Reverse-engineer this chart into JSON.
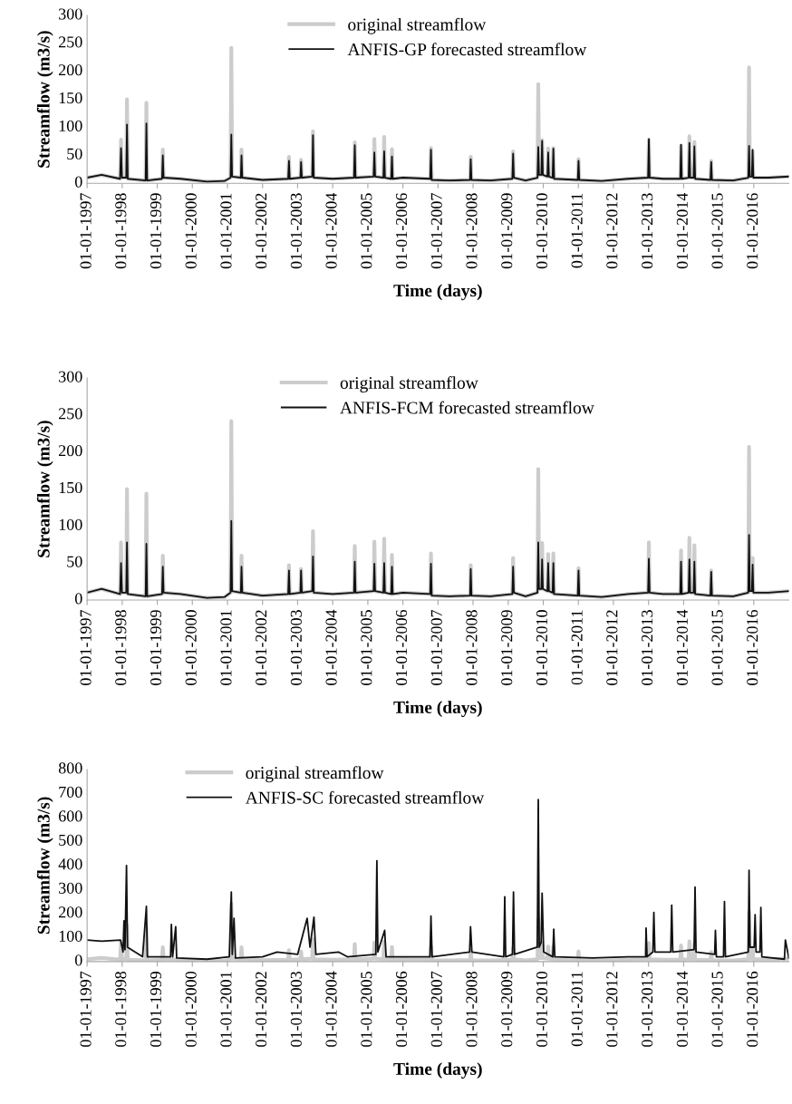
{
  "chart_data": [
    {
      "type": "line",
      "xlabel": "Time (days)",
      "ylabel": "Streamflow (m3/s)",
      "legend": "top",
      "ylim": [
        0,
        300
      ],
      "yticks": [
        0,
        50,
        100,
        150,
        200,
        250,
        300
      ],
      "xlim": [
        "1997-01-01",
        "2016-12-31"
      ],
      "xticks": [
        {
          "value": "1997-01-01",
          "label": "01-01-1997"
        },
        {
          "value": "1998-01-01",
          "label": "01-01-1998"
        },
        {
          "value": "1999-01-01",
          "label": "01-01-1999"
        },
        {
          "value": "2000-01-01",
          "label": "01-01-2000"
        },
        {
          "value": "2001-01-01",
          "label": "01-01-2001"
        },
        {
          "value": "2002-01-01",
          "label": "01-01-2002"
        },
        {
          "value": "2003-01-01",
          "label": "01-01-2003"
        },
        {
          "value": "2004-01-01",
          "label": "01-01-2004"
        },
        {
          "value": "2005-01-01",
          "label": "01-01-2005"
        },
        {
          "value": "2006-01-01",
          "label": "01-01-2006"
        },
        {
          "value": "2007-01-01",
          "label": "01-01-2007"
        },
        {
          "value": "2008-01-01",
          "label": "01-01-2008"
        },
        {
          "value": "2009-01-01",
          "label": "01-01-2009"
        },
        {
          "value": "2010-01-01",
          "label": "01-01-2010"
        },
        {
          "value": "2011-01-01",
          "label": "01-01-2011"
        },
        {
          "value": "2012-01-01",
          "label": "01-01-2012"
        },
        {
          "value": "2013-01-01",
          "label": "01-01-2013"
        },
        {
          "value": "2014-01-01",
          "label": "01-01-2014"
        },
        {
          "value": "2015-01-01",
          "label": "01-01-2015"
        },
        {
          "value": "2016-01-01",
          "label": "01-01-2016"
        }
      ],
      "x": [
        "1997-01-01",
        "1997-06-01",
        "1997-12-10",
        "1997-12-20",
        "1997-12-30",
        "1998-02-12",
        "1998-02-20",
        "1998-02-28",
        "1998-09-02",
        "1998-09-10",
        "1998-09-18",
        "1999-02-20",
        "1999-02-28",
        "1999-03-08",
        "1999-09-01",
        "2000-06-01",
        "2000-12-01",
        "2001-02-02",
        "2001-02-10",
        "2001-02-18",
        "2001-05-20",
        "2001-05-27",
        "2001-06-04",
        "2002-01-01",
        "2002-09-25",
        "2002-10-03",
        "2002-10-11",
        "2003-01-30",
        "2003-02-06",
        "2003-02-14",
        "2003-06-02",
        "2003-06-10",
        "2003-06-18",
        "2004-01-01",
        "2004-08-10",
        "2004-08-18",
        "2004-08-26",
        "2005-03-02",
        "2005-03-10",
        "2005-03-18",
        "2005-06-12",
        "2005-06-20",
        "2005-06-28",
        "2005-09-01",
        "2005-09-09",
        "2005-09-17",
        "2006-01-01",
        "2006-10-12",
        "2006-10-20",
        "2006-10-28",
        "2007-05-01",
        "2007-12-01",
        "2007-12-08",
        "2007-12-16",
        "2008-07-01",
        "2009-02-13",
        "2009-02-21",
        "2009-03-01",
        "2009-07-01",
        "2009-11-02",
        "2009-11-10",
        "2009-11-18",
        "2009-12-12",
        "2009-12-20",
        "2009-12-28",
        "2010-02-13",
        "2010-02-21",
        "2010-03-01",
        "2010-04-08",
        "2010-04-16",
        "2010-04-24",
        "2010-12-26",
        "2011-01-03",
        "2011-01-11",
        "2011-09-01",
        "2012-06-01",
        "2012-12-27",
        "2013-01-04",
        "2013-01-12",
        "2013-06-01",
        "2013-11-27",
        "2013-12-05",
        "2013-12-13",
        "2014-02-22",
        "2014-03-02",
        "2014-03-10",
        "2014-04-15",
        "2014-04-23",
        "2014-05-01",
        "2014-10-07",
        "2014-10-15",
        "2014-10-23",
        "2015-06-01",
        "2015-11-05",
        "2015-11-13",
        "2015-11-21",
        "2015-12-12",
        "2015-12-20",
        "2015-12-28",
        "2016-06-01",
        "2016-12-31"
      ],
      "series": [
        {
          "name": "original streamflow",
          "color": "#cccccc",
          "values": [
            10,
            15,
            8,
            78,
            10,
            10,
            150,
            8,
            5,
            144,
            5,
            8,
            60,
            10,
            8,
            3,
            4,
            10,
            242,
            12,
            10,
            60,
            10,
            6,
            8,
            47,
            8,
            10,
            42,
            10,
            12,
            93,
            10,
            8,
            10,
            73,
            10,
            12,
            79,
            12,
            10,
            83,
            10,
            8,
            61,
            8,
            10,
            8,
            63,
            6,
            5,
            6,
            47,
            6,
            5,
            8,
            57,
            10,
            5,
            10,
            177,
            15,
            15,
            77,
            15,
            12,
            62,
            12,
            10,
            63,
            8,
            6,
            43,
            6,
            4,
            8,
            10,
            78,
            10,
            8,
            8,
            67,
            8,
            10,
            84,
            10,
            10,
            74,
            8,
            6,
            40,
            6,
            5,
            10,
            207,
            12,
            12,
            57,
            10,
            10,
            12
          ]
        },
        {
          "name": "ANFIS-GP forecasted streamflow",
          "color": "#111111",
          "values": [
            10,
            15,
            8,
            63,
            10,
            10,
            105,
            8,
            5,
            107,
            5,
            8,
            50,
            10,
            8,
            3,
            4,
            10,
            87,
            12,
            10,
            50,
            10,
            6,
            8,
            40,
            8,
            10,
            38,
            10,
            12,
            86,
            10,
            8,
            10,
            68,
            10,
            12,
            55,
            12,
            10,
            57,
            10,
            8,
            48,
            8,
            10,
            8,
            60,
            6,
            5,
            6,
            43,
            6,
            5,
            8,
            53,
            10,
            5,
            10,
            65,
            15,
            15,
            76,
            15,
            12,
            55,
            12,
            10,
            62,
            8,
            6,
            40,
            6,
            4,
            8,
            10,
            79,
            10,
            8,
            8,
            69,
            8,
            10,
            72,
            10,
            10,
            66,
            8,
            6,
            38,
            6,
            5,
            10,
            67,
            12,
            12,
            60,
            10,
            10,
            12
          ]
        }
      ]
    },
    {
      "type": "line",
      "xlabel": "Time (days)",
      "ylabel": "Streamflow (m3/s)",
      "legend": "top",
      "ylim": [
        0,
        300
      ],
      "yticks": [
        0,
        50,
        100,
        150,
        200,
        250,
        300
      ],
      "xlim": [
        "1997-01-01",
        "2016-12-31"
      ],
      "xticks": [
        {
          "value": "1997-01-01",
          "label": "01-01-1997"
        },
        {
          "value": "1998-01-01",
          "label": "01-01-1998"
        },
        {
          "value": "1999-01-01",
          "label": "01-01-1999"
        },
        {
          "value": "2000-01-01",
          "label": "01-01-2000"
        },
        {
          "value": "2001-01-01",
          "label": "01-01-2001"
        },
        {
          "value": "2002-01-01",
          "label": "01-01-2002"
        },
        {
          "value": "2003-01-01",
          "label": "01-01-2003"
        },
        {
          "value": "2004-01-01",
          "label": "01-01-2004"
        },
        {
          "value": "2005-01-01",
          "label": "01-01-2005"
        },
        {
          "value": "2006-01-01",
          "label": "01-01-2006"
        },
        {
          "value": "2007-01-01",
          "label": "01-01-2007"
        },
        {
          "value": "2008-01-01",
          "label": "01-01-2008"
        },
        {
          "value": "2009-01-01",
          "label": "01-01-2009"
        },
        {
          "value": "2010-01-01",
          "label": "01-01-2010"
        },
        {
          "value": "2011-01-01",
          "label": "01-01-2011"
        },
        {
          "value": "2012-01-01",
          "label": "01-01-2012"
        },
        {
          "value": "2013-01-01",
          "label": "01-01-2013"
        },
        {
          "value": "2014-01-01",
          "label": "01-01-2014"
        },
        {
          "value": "2015-01-01",
          "label": "01-01-2015"
        },
        {
          "value": "2016-01-01",
          "label": "01-01-2016"
        }
      ],
      "x": [
        "1997-01-01",
        "1997-06-01",
        "1997-12-10",
        "1997-12-20",
        "1997-12-30",
        "1998-02-12",
        "1998-02-20",
        "1998-02-28",
        "1998-09-02",
        "1998-09-10",
        "1998-09-18",
        "1999-02-20",
        "1999-02-28",
        "1999-03-08",
        "1999-09-01",
        "2000-06-01",
        "2000-12-01",
        "2001-02-02",
        "2001-02-10",
        "2001-02-18",
        "2001-05-20",
        "2001-05-27",
        "2001-06-04",
        "2002-01-01",
        "2002-09-25",
        "2002-10-03",
        "2002-10-11",
        "2003-01-30",
        "2003-02-06",
        "2003-02-14",
        "2003-06-02",
        "2003-06-10",
        "2003-06-18",
        "2004-01-01",
        "2004-08-10",
        "2004-08-18",
        "2004-08-26",
        "2005-03-02",
        "2005-03-10",
        "2005-03-18",
        "2005-06-12",
        "2005-06-20",
        "2005-06-28",
        "2005-09-01",
        "2005-09-09",
        "2005-09-17",
        "2006-01-01",
        "2006-10-12",
        "2006-10-20",
        "2006-10-28",
        "2007-05-01",
        "2007-12-01",
        "2007-12-08",
        "2007-12-16",
        "2008-07-01",
        "2009-02-13",
        "2009-02-21",
        "2009-03-01",
        "2009-07-01",
        "2009-11-02",
        "2009-11-10",
        "2009-11-18",
        "2009-12-12",
        "2009-12-20",
        "2009-12-28",
        "2010-02-13",
        "2010-02-21",
        "2010-03-01",
        "2010-04-08",
        "2010-04-16",
        "2010-04-24",
        "2010-12-26",
        "2011-01-03",
        "2011-01-11",
        "2011-09-01",
        "2012-06-01",
        "2012-12-27",
        "2013-01-04",
        "2013-01-12",
        "2013-06-01",
        "2013-11-27",
        "2013-12-05",
        "2013-12-13",
        "2014-02-22",
        "2014-03-02",
        "2014-03-10",
        "2014-04-15",
        "2014-04-23",
        "2014-05-01",
        "2014-10-07",
        "2014-10-15",
        "2014-10-23",
        "2015-06-01",
        "2015-11-05",
        "2015-11-13",
        "2015-11-21",
        "2015-12-12",
        "2015-12-20",
        "2015-12-28",
        "2016-06-01",
        "2016-12-31"
      ],
      "series": [
        {
          "name": "original streamflow",
          "color": "#cccccc",
          "values": [
            10,
            15,
            8,
            78,
            10,
            10,
            150,
            8,
            5,
            144,
            5,
            8,
            60,
            10,
            8,
            3,
            4,
            10,
            242,
            12,
            10,
            60,
            10,
            6,
            8,
            47,
            8,
            10,
            42,
            10,
            12,
            93,
            10,
            8,
            10,
            73,
            10,
            12,
            79,
            12,
            10,
            83,
            10,
            8,
            61,
            8,
            10,
            8,
            63,
            6,
            5,
            6,
            47,
            6,
            5,
            8,
            57,
            10,
            5,
            10,
            177,
            15,
            15,
            77,
            15,
            12,
            62,
            12,
            10,
            63,
            8,
            6,
            43,
            6,
            4,
            8,
            10,
            78,
            10,
            8,
            8,
            67,
            8,
            10,
            84,
            10,
            10,
            74,
            8,
            6,
            40,
            6,
            5,
            10,
            207,
            12,
            12,
            57,
            10,
            10,
            12
          ]
        },
        {
          "name": "ANFIS-FCM forecasted streamflow",
          "color": "#111111",
          "values": [
            10,
            15,
            8,
            50,
            10,
            10,
            78,
            8,
            5,
            76,
            5,
            8,
            45,
            10,
            8,
            3,
            4,
            10,
            107,
            12,
            10,
            45,
            10,
            6,
            8,
            40,
            8,
            10,
            40,
            10,
            12,
            59,
            10,
            8,
            10,
            52,
            10,
            12,
            49,
            12,
            10,
            50,
            10,
            8,
            45,
            8,
            10,
            8,
            49,
            6,
            5,
            6,
            42,
            6,
            5,
            8,
            45,
            10,
            5,
            10,
            78,
            15,
            15,
            55,
            15,
            12,
            50,
            12,
            10,
            50,
            8,
            6,
            40,
            6,
            4,
            8,
            10,
            56,
            10,
            8,
            8,
            52,
            8,
            10,
            55,
            10,
            10,
            52,
            8,
            6,
            38,
            6,
            5,
            10,
            88,
            12,
            12,
            48,
            10,
            10,
            12
          ]
        }
      ]
    },
    {
      "type": "line",
      "xlabel": "Time (days)",
      "ylabel": "Streamflow (m3/s)",
      "legend": "top left",
      "ylim": [
        0,
        800
      ],
      "yticks": [
        0,
        100,
        200,
        300,
        400,
        500,
        600,
        700,
        800
      ],
      "xlim": [
        "1997-01-01",
        "2016-12-31"
      ],
      "xticks": [
        {
          "value": "1997-01-01",
          "label": "01-01-1997"
        },
        {
          "value": "1998-01-01",
          "label": "01-01-1998"
        },
        {
          "value": "1999-01-01",
          "label": "01-01-1999"
        },
        {
          "value": "2000-01-01",
          "label": "01-01-2000"
        },
        {
          "value": "2001-01-01",
          "label": "01-01-2001"
        },
        {
          "value": "2002-01-01",
          "label": "01-01-2002"
        },
        {
          "value": "2003-01-01",
          "label": "01-01-2003"
        },
        {
          "value": "2004-01-01",
          "label": "01-01-2004"
        },
        {
          "value": "2005-01-01",
          "label": "01-01-2005"
        },
        {
          "value": "2006-01-01",
          "label": "01-01-2006"
        },
        {
          "value": "2007-01-01",
          "label": "01-01-2007"
        },
        {
          "value": "2008-01-01",
          "label": "01-01-2008"
        },
        {
          "value": "2009-01-01",
          "label": "01-01-2009"
        },
        {
          "value": "2010-01-01",
          "label": "01-01-2010"
        },
        {
          "value": "2011-01-01",
          "label": "01-01-2011"
        },
        {
          "value": "2012-01-01",
          "label": "01-01-2012"
        },
        {
          "value": "2013-01-01",
          "label": "01-01-2013"
        },
        {
          "value": "2014-01-01",
          "label": "01-01-2014"
        },
        {
          "value": "2015-01-01",
          "label": "01-01-2015"
        },
        {
          "value": "2016-01-01",
          "label": "01-01-2016"
        }
      ],
      "x": [
        "1997-01-01",
        "1997-06-01",
        "1997-12-10",
        "1997-12-20",
        "1997-12-30",
        "1998-02-12",
        "1998-02-20",
        "1998-02-28",
        "1998-09-02",
        "1998-09-10",
        "1998-09-18",
        "1999-02-20",
        "1999-02-28",
        "1999-03-08",
        "1999-09-01",
        "2000-06-01",
        "2000-12-01",
        "2001-02-02",
        "2001-02-10",
        "2001-02-18",
        "2001-05-20",
        "2001-05-27",
        "2001-06-04",
        "2002-01-01",
        "2002-09-25",
        "2002-10-03",
        "2002-10-11",
        "2003-01-30",
        "2003-02-06",
        "2003-02-14",
        "2003-06-02",
        "2003-06-10",
        "2003-06-18",
        "2004-01-01",
        "2004-08-10",
        "2004-08-18",
        "2004-08-26",
        "2005-03-02",
        "2005-03-10",
        "2005-03-18",
        "2005-06-12",
        "2005-06-20",
        "2005-06-28",
        "2005-09-01",
        "2005-09-09",
        "2005-09-17",
        "2006-01-01",
        "2006-10-12",
        "2006-10-20",
        "2006-10-28",
        "2007-05-01",
        "2007-12-01",
        "2007-12-08",
        "2007-12-16",
        "2008-07-01",
        "2009-02-13",
        "2009-02-21",
        "2009-03-01",
        "2009-07-01",
        "2009-11-02",
        "2009-11-10",
        "2009-11-18",
        "2009-12-12",
        "2009-12-20",
        "2009-12-28",
        "2010-02-13",
        "2010-02-21",
        "2010-03-01",
        "2010-04-08",
        "2010-04-16",
        "2010-04-24",
        "2010-12-26",
        "2011-01-03",
        "2011-01-11",
        "2011-09-01",
        "2012-06-01",
        "2012-12-27",
        "2013-01-04",
        "2013-01-12",
        "2013-06-01",
        "2013-11-27",
        "2013-12-05",
        "2013-12-13",
        "2014-02-22",
        "2014-03-02",
        "2014-03-10",
        "2014-04-15",
        "2014-04-23",
        "2014-05-01",
        "2014-10-07",
        "2014-10-15",
        "2014-10-23",
        "2015-06-01",
        "2015-11-05",
        "2015-11-13",
        "2015-11-21",
        "2015-12-12",
        "2015-12-20",
        "2015-12-28",
        "2016-06-01",
        "2016-12-31"
      ],
      "series": [
        {
          "name": "original streamflow",
          "color": "#cccccc",
          "values": [
            10,
            15,
            8,
            78,
            10,
            10,
            150,
            8,
            5,
            144,
            5,
            8,
            60,
            10,
            8,
            3,
            4,
            10,
            242,
            12,
            10,
            60,
            10,
            6,
            8,
            47,
            8,
            10,
            42,
            10,
            12,
            93,
            10,
            8,
            10,
            73,
            10,
            12,
            79,
            12,
            10,
            83,
            10,
            8,
            61,
            8,
            10,
            8,
            63,
            6,
            5,
            6,
            47,
            6,
            5,
            8,
            57,
            10,
            5,
            10,
            177,
            15,
            15,
            77,
            15,
            12,
            62,
            12,
            10,
            63,
            8,
            6,
            43,
            6,
            4,
            8,
            10,
            78,
            10,
            8,
            8,
            67,
            8,
            10,
            84,
            10,
            10,
            74,
            8,
            6,
            40,
            6,
            5,
            10,
            207,
            12,
            12,
            57,
            10,
            10,
            12
          ]
        },
        {
          "name": "ANFIS-SC forecasted streamflow",
          "color": "#111111",
          "x": [
            "1997-01-01",
            "1997-06-01",
            "1997-12-15",
            "1998-01-10",
            "1998-01-20",
            "1998-01-30",
            "1998-02-15",
            "1998-02-25",
            "1998-08-01",
            "1998-09-10",
            "1998-09-20",
            "1999-05-20",
            "1999-05-28",
            "1999-06-10",
            "1999-07-12",
            "1999-07-22",
            "2000-06-01",
            "2001-01-20",
            "2001-02-10",
            "2001-02-20",
            "2001-03-10",
            "2001-03-25",
            "2002-01-01",
            "2002-06-01",
            "2003-01-01",
            "2003-04-10",
            "2003-05-10",
            "2003-06-20",
            "2003-07-10",
            "2004-03-01",
            "2004-06-01",
            "2005-03-25",
            "2005-04-05",
            "2005-04-15",
            "2005-06-25",
            "2005-07-10",
            "2006-06-01",
            "2006-10-10",
            "2006-10-20",
            "2006-11-01",
            "2007-11-26",
            "2007-12-06",
            "2007-12-20",
            "2008-11-16",
            "2008-11-26",
            "2008-12-06",
            "2009-02-15",
            "2009-02-25",
            "2009-03-08",
            "2009-10-31",
            "2009-11-10",
            "2009-11-20",
            "2009-12-10",
            "2009-12-20",
            "2010-01-05",
            "2010-04-10",
            "2010-04-20",
            "2010-05-01",
            "2011-06-01",
            "2012-06-01",
            "2012-12-01",
            "2012-12-06",
            "2012-12-16",
            "2013-02-15",
            "2013-02-25",
            "2013-03-08",
            "2013-08-20",
            "2013-08-30",
            "2013-09-10",
            "2014-04-20",
            "2014-04-30",
            "2014-05-10",
            "2014-11-20",
            "2014-11-28",
            "2014-12-08",
            "2015-02-20",
            "2015-03-02",
            "2015-03-12",
            "2015-11-05",
            "2015-11-13",
            "2015-11-23",
            "2016-01-05",
            "2016-01-15",
            "2016-01-25",
            "2016-03-05",
            "2016-03-15",
            "2016-03-25",
            "2016-11-15",
            "2016-11-25",
            "2016-12-31"
          ],
          "values": [
            90,
            85,
            90,
            40,
            170,
            50,
            400,
            60,
            20,
            230,
            20,
            20,
            155,
            20,
            145,
            15,
            10,
            20,
            290,
            30,
            180,
            15,
            20,
            40,
            30,
            180,
            60,
            185,
            30,
            40,
            20,
            30,
            420,
            40,
            130,
            20,
            20,
            20,
            190,
            20,
            40,
            145,
            40,
            20,
            270,
            20,
            30,
            290,
            30,
            60,
            675,
            60,
            80,
            285,
            40,
            20,
            135,
            20,
            15,
            20,
            20,
            140,
            20,
            40,
            205,
            40,
            40,
            235,
            40,
            50,
            310,
            40,
            30,
            130,
            20,
            20,
            250,
            20,
            40,
            380,
            60,
            60,
            195,
            40,
            40,
            225,
            20,
            10,
            90,
            15
          ]
        }
      ]
    }
  ]
}
